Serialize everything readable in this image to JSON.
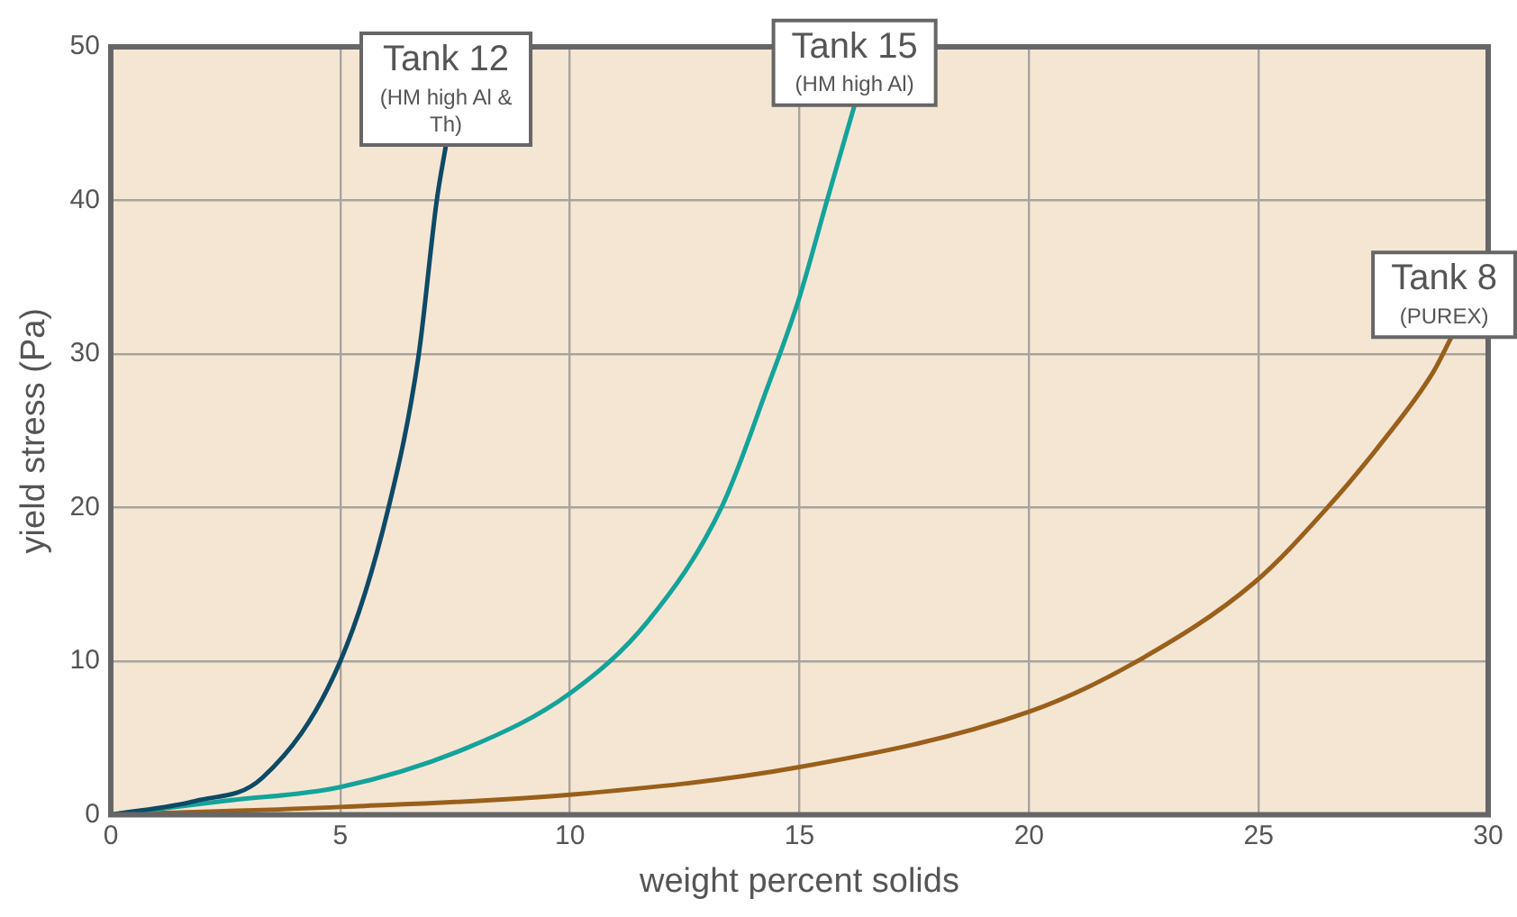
{
  "chart_data": {
    "type": "line",
    "xlabel": "weight percent solids",
    "ylabel": "yield stress (Pa)",
    "xlim": [
      0,
      30
    ],
    "xticks": [
      0,
      5,
      10,
      15,
      20,
      25,
      30
    ],
    "ylim": [
      0,
      50
    ],
    "yticks": [
      0,
      10,
      20,
      30,
      40,
      50
    ],
    "grid": true,
    "legend": false,
    "marker": "none",
    "line_style": "solid",
    "series": [
      {
        "name": "Tank 12",
        "color": "#0d4a66",
        "x": [
          0,
          1.85,
          3.3,
          5,
          6.05,
          6.7,
          7.1,
          7.3
        ],
        "values": [
          0,
          0.9,
          2.4,
          10,
          20,
          29.8,
          40,
          43.6
        ]
      },
      {
        "name": "Tank 15",
        "color": "#14a39a",
        "x": [
          0,
          2.5,
          5,
          7.8,
          10,
          11.7,
          13.3,
          14.3,
          15,
          15.6,
          16.2
        ],
        "values": [
          0,
          0.9,
          1.8,
          4.4,
          7.9,
          12.6,
          20,
          27.8,
          33.7,
          40,
          46.2
        ]
      },
      {
        "name": "Tank 8",
        "color": "#9a5f1a",
        "x": [
          0,
          5,
          10,
          15,
          20,
          22.3,
          24.9,
          26.5,
          27.7,
          28.8,
          29.2
        ],
        "values": [
          0,
          0.5,
          1.3,
          3.1,
          6.7,
          9.9,
          15.1,
          20,
          24.3,
          28.8,
          31.1
        ]
      }
    ],
    "annotations": [
      {
        "text": "(HM high Al & Th)",
        "x": 7.3,
        "y": 43.6
      },
      {
        "text": "(HM high Al)",
        "x": 16.2,
        "y": 46.2
      },
      {
        "text": "(PUREX)",
        "x": 29.2,
        "y": 31.1
      }
    ]
  }
}
